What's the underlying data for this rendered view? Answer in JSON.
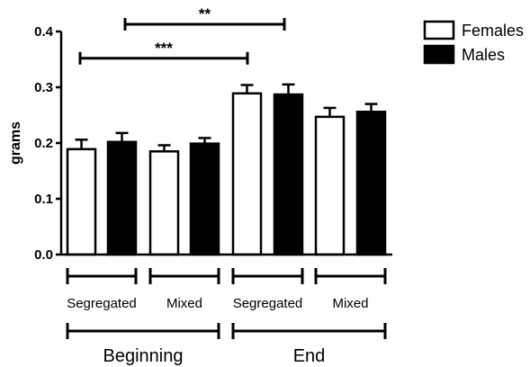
{
  "chart_data": {
    "type": "bar",
    "ylabel": "grams",
    "ylim": [
      0,
      0.4
    ],
    "yticks": [
      0.0,
      0.1,
      0.2,
      0.3,
      0.4
    ],
    "ytick_labels": [
      "0.0",
      "0.1",
      "0.2",
      "0.3",
      "0.4"
    ],
    "legend_position": "top-right",
    "series": [
      {
        "name": "Females",
        "color": "#ffffff"
      },
      {
        "name": "Males",
        "color": "#000000"
      }
    ],
    "groups": [
      {
        "label": "Segregated",
        "period": "Beginning",
        "values": [
          0.189,
          0.202
        ],
        "errors": [
          0.017,
          0.016
        ]
      },
      {
        "label": "Mixed",
        "period": "Beginning",
        "values": [
          0.185,
          0.199
        ],
        "errors": [
          0.011,
          0.01
        ]
      },
      {
        "label": "Segregated",
        "period": "End",
        "values": [
          0.289,
          0.287
        ],
        "errors": [
          0.015,
          0.018
        ]
      },
      {
        "label": "Mixed",
        "period": "End",
        "values": [
          0.247,
          0.256
        ],
        "errors": [
          0.016,
          0.014
        ]
      }
    ],
    "periods": [
      "Beginning",
      "End"
    ],
    "significance": [
      {
        "label": "**",
        "from_group": 1,
        "to_group": 2,
        "y": 0.413
      },
      {
        "label": "***",
        "from_group": 0,
        "to_group": 2,
        "y": 0.352
      }
    ]
  }
}
